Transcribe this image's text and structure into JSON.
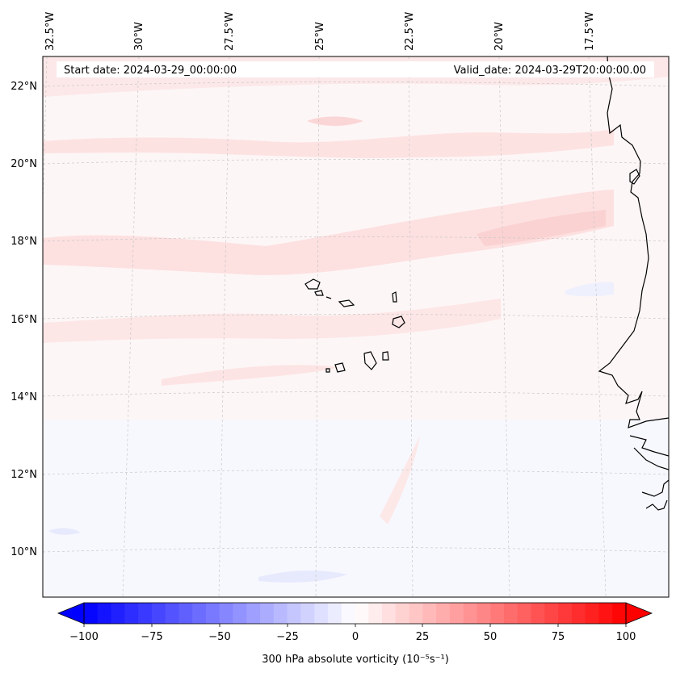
{
  "header": {
    "start_date": "Start date: 2024-03-29_00:00:00",
    "valid_date": "Valid_date: 2024-03-29T20:00:00.00"
  },
  "map": {
    "lon_ticks": [
      "32.5°W",
      "30°W",
      "27.5°W",
      "25°W",
      "22.5°W",
      "20°W",
      "17.5°W"
    ],
    "lat_ticks": [
      "22°N",
      "20°N",
      "18°N",
      "16°N",
      "14°N",
      "12°N",
      "10°N"
    ],
    "field_colors": {
      "background": "#fdf3f3",
      "weak_positive": "#fde4e4",
      "moderate_positive": "#fbd3d3",
      "weak_negative": "#eef0fd",
      "coastline": "#000000",
      "gridline": "#c8c8c8"
    }
  },
  "colorbar": {
    "ticks": [
      "−100",
      "−75",
      "−50",
      "−25",
      "0",
      "25",
      "50",
      "75",
      "100"
    ],
    "label": "300 hPa absolute vorticity (10⁻⁵s⁻¹)",
    "min_color": "#0000ff",
    "mid_color": "#ffffff",
    "max_color": "#ff0000"
  }
}
